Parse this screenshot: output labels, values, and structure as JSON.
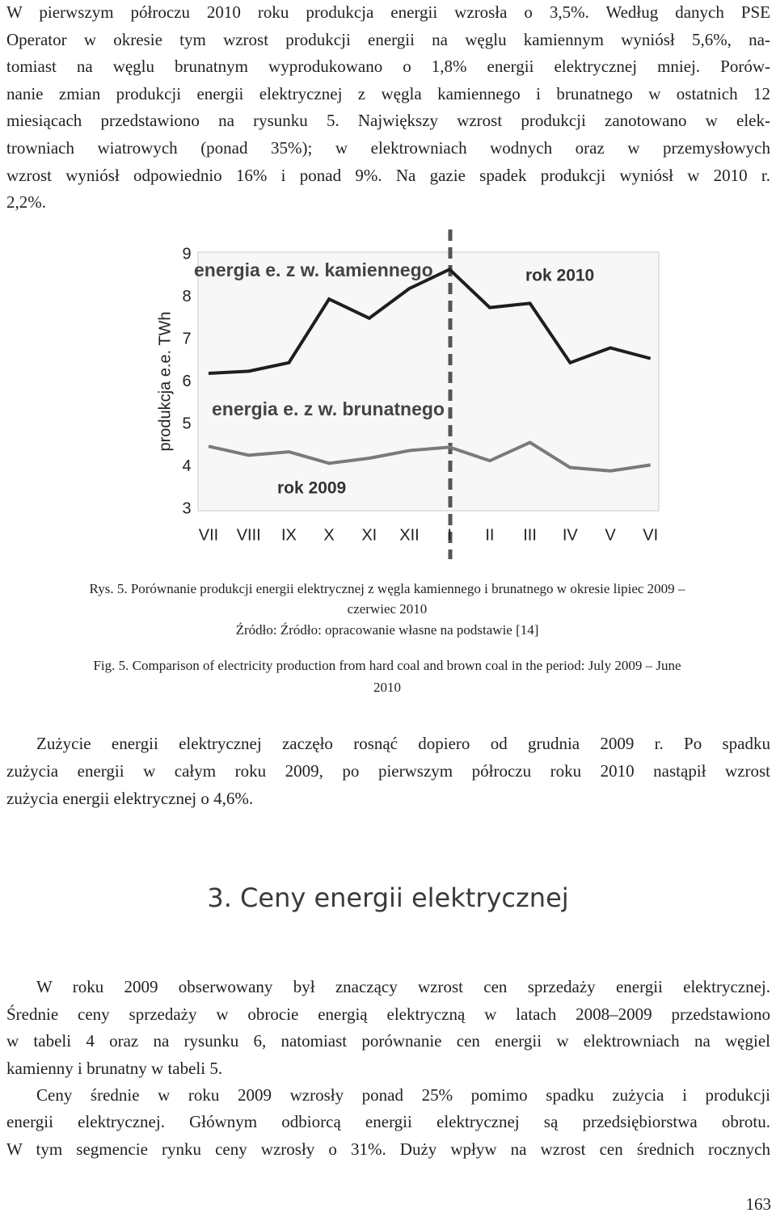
{
  "paragraphs": [
    {
      "lines": [
        "W pierwszym półroczu 2010 roku produkcja energii wzrosła o 3,5%. Według danych PSE",
        "Operator w okresie tym wzrost produkcji energii na węglu kamiennym wyniósł 5,6%, na-",
        "tomiast na węglu brunatnym wyprodukowano o 1,8% energii elektrycznej mniej. Porów-",
        "nanie zmian produkcji energii elektrycznej z węgla kamiennego i brunatnego w ostatnich 12",
        "miesiącach przedstawiono na rysunku 5. Największy wzrost produkcji zanotowano w elek-",
        "trowniach wiatrowych (ponad 35%); w elektrowniach wodnych oraz w przemysłowych",
        "wzrost wyniósł odpowiednio 16% i ponad 9%. Na gazie spadek produkcji wyniósł w 2010 r.",
        "2,2%."
      ]
    },
    {
      "lines": [
        "Zużycie energii elektrycznej zaczęło rosnąć dopiero od grudnia 2009 r. Po spadku",
        "zużycia energii w całym roku 2009, po pierwszym półroczu roku 2010 nastąpił wzrost",
        "zużycia energii elektrycznej o 4,6%."
      ]
    },
    {
      "lines": [
        "W roku 2009 obserwowany był znaczący wzrost cen sprzedaży energii elektrycznej.",
        "Średnie ceny sprzedaży w obrocie energią elektryczną w latach 2008–2009 przedstawiono",
        "w tabeli 4 oraz na rysunku 6, natomiast porównanie cen energii w elektrowniach na węgiel",
        "kamienny i brunatny w tabeli 5."
      ]
    },
    {
      "lines": [
        "Ceny średnie w roku 2009 wzrosły ponad 25% pomimo spadku zużycia i produkcji",
        "energii elektrycznej. Głównym odbiorcą energii elektrycznej są przedsiębiorstwa obrotu.",
        "W tym segmencie rynku ceny wzrosły o 31%. Duży wpływ na wzrost cen średnich rocznych"
      ]
    }
  ],
  "chart_data": {
    "type": "line",
    "y_label": "produkcja e.e. TWh",
    "categories": [
      "VII",
      "VIII",
      "IX",
      "X",
      "XI",
      "XII",
      "I",
      "II",
      "III",
      "IV",
      "V",
      "VI"
    ],
    "series": [
      {
        "name": "energia e. z w. kamiennego",
        "color": "#1e1e1e",
        "values": [
          6.2,
          6.25,
          6.45,
          7.95,
          7.5,
          8.2,
          8.65,
          7.75,
          7.85,
          6.45,
          6.8,
          6.55
        ]
      },
      {
        "name": "energia e. z w. brunatnego",
        "color": "#7a7a7a",
        "values": [
          4.48,
          4.27,
          4.35,
          4.08,
          4.2,
          4.38,
          4.46,
          4.14,
          4.57,
          3.98,
          3.9,
          4.04
        ]
      }
    ],
    "annotations": [
      "rok 2010",
      "rok 2009"
    ],
    "ylim": [
      3,
      9
    ],
    "yticks": [
      3,
      4,
      5,
      6,
      7,
      8,
      9
    ],
    "grid": false
  },
  "captions": {
    "polish": [
      "Rys. 5. Porównanie produkcji energii elektrycznej z węgla kamiennego i brunatnego w okresie lipiec 2009 –",
      "czerwiec 2010"
    ],
    "source": "Źródło: Źródło: opracowanie własne na podstawie [14]",
    "english": [
      "Fig. 5. Comparison of electricity production from hard coal and brown coal in the period: July 2009 – June",
      "2010"
    ]
  },
  "heading": "3. Ceny energii elektrycznej",
  "page_number": "163"
}
